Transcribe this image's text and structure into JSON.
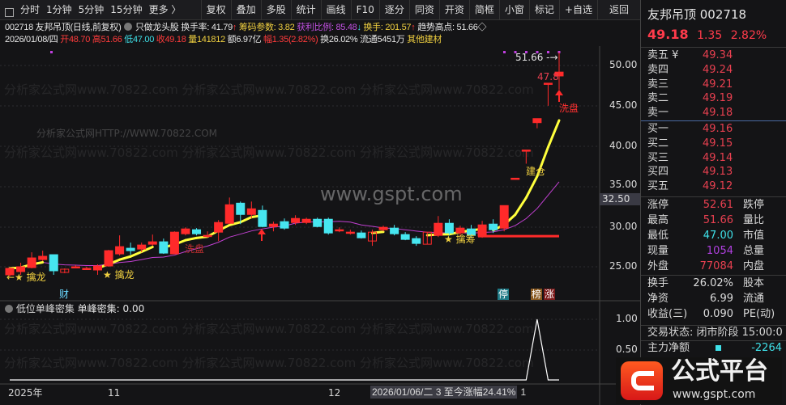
{
  "toolbar": {
    "left": [
      "分时",
      "1分钟",
      "5分钟",
      "15分钟",
      "更多 〉"
    ],
    "buttons": [
      "复权",
      "叠加",
      "多股",
      "统计",
      "画线",
      "F10",
      "逐分",
      "同资",
      "开资",
      "简框",
      "小窗",
      "标记",
      "+自选",
      "返回"
    ]
  },
  "info1": {
    "code_name": "002718 友邦吊顶(日线,前复权)",
    "formula": "只做龙头股",
    "turnover_rate": "换手率: 41.79",
    "chip_param": "筹码参数: 3.82",
    "profit_ratio": "获利比例: 85.48",
    "turnover": "换手: 201.57",
    "trend_high": "趋势高点: 51.66◇"
  },
  "info2": {
    "date": "2026/01/08/四",
    "open": "开48.70",
    "high": "高51.66",
    "low": "低47.00",
    "close": "收49.18",
    "volume": "量141812",
    "amount": "额6.97亿",
    "change": "幅1.35(2.82%)",
    "turn": "换26.02%",
    "float": "流通5451万",
    "sector": "其他建材"
  },
  "price_axis": [
    "50.00",
    "45.00",
    "40.00",
    "35.00",
    "30.00",
    "25.00"
  ],
  "current_price_tag": "32.50",
  "annotations": {
    "qinlong1": "擒龙",
    "qinlong2": "擒龙",
    "xipan1": "洗盘",
    "xipan2": "洗盘",
    "qinchou": "擒筹",
    "jiancang": "建仓",
    "high_label": "51.66",
    "mid_label": "47.8"
  },
  "markers": {
    "cai": "财",
    "ting": "停",
    "bang": "榜",
    "zhang": "涨"
  },
  "indicator": {
    "title": "低位单峰密集",
    "value": "单峰密集: 0.00",
    "axis": [
      "1.00",
      "0.50"
    ]
  },
  "date_axis": {
    "year": "2025年",
    "nov": "11",
    "dec": "12",
    "cursor": "2026/01/06/二 3 至今涨幅24.41%",
    "jan": "1"
  },
  "watermarks": {
    "site": "分析家公式网www.70822.com",
    "site_http": "分析家公式网HTTP://WWW.70822.COM",
    "gspt": "www.gspt.com"
  },
  "logo": {
    "name": "公式平台",
    "url": "www.gspt.com"
  },
  "quote": {
    "title": "友邦吊顶 002718",
    "price": "49.18",
    "change": "1.35",
    "pct": "2.82%",
    "asks": [
      {
        "label": "卖五 ¥",
        "price": "49.34"
      },
      {
        "label": "卖四",
        "price": "49.24"
      },
      {
        "label": "卖三",
        "price": "49.21"
      },
      {
        "label": "卖二",
        "price": "49.19"
      },
      {
        "label": "卖一",
        "price": "49.18"
      }
    ],
    "bids": [
      {
        "label": "买一",
        "price": "49.16"
      },
      {
        "label": "买二",
        "price": "49.15"
      },
      {
        "label": "买三",
        "price": "49.14"
      },
      {
        "label": "买四",
        "price": "49.13"
      },
      {
        "label": "买五",
        "price": "49.12"
      }
    ],
    "stats": [
      {
        "label": "涨停",
        "value": "52.61",
        "label2": "跌停",
        "color": "#e84050"
      },
      {
        "label": "最高",
        "value": "51.66",
        "label2": "量比",
        "color": "#e84050"
      },
      {
        "label": "最低",
        "value": "47.00",
        "label2": "市值",
        "color": "#3fe0e8"
      },
      {
        "label": "现量",
        "value": "1054",
        "label2": "总量",
        "color": "#b040e0"
      },
      {
        "label": "外盘",
        "value": "77084",
        "label2": "内盘",
        "color": "#e84050"
      }
    ],
    "stats2": [
      {
        "label": "换手",
        "value": "26.02%",
        "label2": "股本"
      },
      {
        "label": "净资",
        "value": "6.99",
        "label2": "流通"
      },
      {
        "label": "收益(三)",
        "value": "0.090",
        "label2": "PE(动)"
      }
    ],
    "status": "交易状态: 闭市阶段 15:00:0",
    "main_net_label": "主力净额",
    "main_net_value": "-2264"
  },
  "colors": {
    "up": "#ff2a2a",
    "down": "#46e6f0",
    "ma_fast": "#ffff3c",
    "ma_slow": "#c040d0",
    "bg": "#141416"
  },
  "chart_data": {
    "type": "candlestick",
    "ylim": [
      23,
      52.5
    ],
    "candles": [
      [
        24.0,
        24.9,
        23.8,
        24.8
      ],
      [
        24.4,
        25.5,
        24.0,
        25.0
      ],
      [
        24.9,
        26.8,
        24.8,
        26.1
      ],
      [
        25.9,
        27.0,
        25.7,
        26.3
      ],
      [
        26.5,
        26.5,
        24.0,
        24.5
      ],
      [
        24.3,
        24.8,
        24.2,
        24.7,
        "hollow"
      ],
      [
        25.0,
        25.2,
        24.8,
        25.0
      ],
      [
        24.8,
        25.0,
        24.6,
        24.8
      ],
      [
        24.6,
        25.3,
        24.0,
        25.1
      ],
      [
        25.1,
        27.1,
        25.0,
        27.0
      ],
      [
        26.6,
        28.9,
        26.4,
        27.5
      ],
      [
        27.3,
        28.0,
        26.5,
        27.0
      ],
      [
        27.2,
        28.0,
        26.8,
        27.7
      ],
      [
        27.8,
        29.0,
        27.6,
        28.1
      ],
      [
        28.1,
        28.5,
        26.6,
        26.7
      ],
      [
        26.6,
        29.4,
        26.6,
        29.3
      ],
      [
        29.1,
        29.9,
        28.9,
        29.7
      ],
      [
        29.6,
        29.8,
        28.9,
        29.1
      ],
      [
        28.9,
        29.4,
        28.6,
        28.9
      ],
      [
        29.3,
        30.8,
        28.2,
        30.5
      ],
      [
        30.4,
        33.6,
        30.3,
        32.7
      ],
      [
        32.9,
        33.1,
        30.3,
        31.5
      ],
      [
        31.5,
        33.1,
        31.0,
        32.2
      ],
      [
        32.0,
        32.6,
        29.9,
        30.0
      ],
      [
        30.0,
        30.6,
        29.4,
        30.3
      ],
      [
        30.6,
        31.0,
        29.6,
        29.8
      ],
      [
        30.5,
        31.4,
        30.2,
        31.0
      ],
      [
        30.5,
        31.1,
        30.3,
        30.9
      ],
      [
        30.9,
        31.1,
        29.9,
        30.0
      ],
      [
        30.9,
        31.1,
        29.0,
        29.2
      ],
      [
        29.6,
        29.9,
        29.3,
        29.6
      ],
      [
        29.3,
        29.6,
        29.0,
        29.3
      ],
      [
        29.2,
        29.5,
        28.5,
        28.6
      ],
      [
        28.2,
        29.6,
        27.6,
        29.3,
        "hollow"
      ],
      [
        29.6,
        30.1,
        29.4,
        29.9
      ],
      [
        29.8,
        30.2,
        28.9,
        29.1
      ],
      [
        29.0,
        29.3,
        28.3,
        28.4
      ],
      [
        28.5,
        28.8,
        27.6,
        27.9
      ],
      [
        27.8,
        29.3,
        27.8,
        29.3,
        "hollow"
      ],
      [
        28.9,
        31.3,
        28.7,
        30.4
      ],
      [
        30.4,
        30.9,
        28.9,
        29.2
      ],
      [
        29.2,
        30.1,
        28.8,
        29.8
      ],
      [
        29.7,
        30.2,
        28.6,
        28.9
      ],
      [
        28.8,
        30.7,
        28.6,
        30.2
      ],
      [
        30.3,
        30.9,
        29.2,
        29.6
      ],
      [
        29.8,
        32.6,
        29.4,
        32.6
      ],
      [
        35.9,
        36.0,
        35.9,
        36.0
      ],
      [
        39.4,
        39.5,
        37.8,
        39.5
      ],
      [
        42.9,
        43.4,
        42.2,
        43.4
      ],
      [
        47.7,
        47.8,
        45.0,
        47.8
      ],
      [
        48.7,
        51.66,
        47.0,
        49.18
      ]
    ],
    "support_line": 28.8,
    "indicator_values": [
      0,
      0,
      0,
      0,
      0,
      0,
      0,
      0,
      0,
      0,
      0,
      0,
      0,
      0,
      0,
      0,
      0,
      0,
      0,
      0,
      0,
      0,
      0,
      0,
      0,
      0,
      0,
      0,
      0,
      0,
      0,
      0,
      0,
      0,
      0,
      0,
      0,
      0,
      0,
      0,
      0,
      0,
      0,
      0,
      0,
      0,
      0,
      0,
      1,
      0,
      0
    ],
    "indicator_ylim": [
      0,
      1
    ]
  }
}
